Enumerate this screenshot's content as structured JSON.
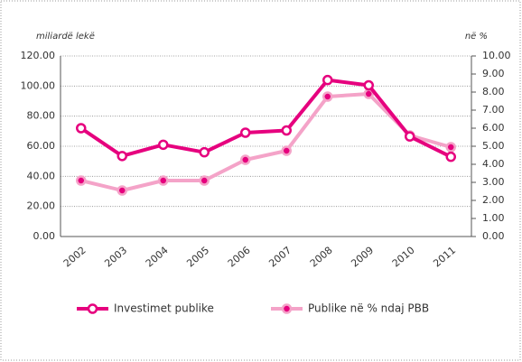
{
  "chart_data": {
    "type": "line",
    "y_label": "miliardë lekë",
    "y2_label": "në %",
    "categories": [
      "2002",
      "2003",
      "2004",
      "2005",
      "2006",
      "2007",
      "2008",
      "2009",
      "2010",
      "2011"
    ],
    "series": [
      {
        "name": "Investimet publike",
        "color": "#e6007e",
        "values": [
          72,
          53.5,
          61,
          56,
          69,
          70.5,
          104,
          100.5,
          66.5,
          53
        ]
      },
      {
        "name": "Publike në % ndaj PBB",
        "color": "#f4a3c8",
        "axis": "y2",
        "values": [
          3.1,
          2.55,
          3.1,
          3.1,
          4.25,
          4.75,
          7.75,
          7.9,
          5.6,
          4.95
        ]
      }
    ],
    "ylim": [
      0,
      120
    ],
    "yticks": [
      {
        "value": 0,
        "label": "0.00"
      },
      {
        "value": 20,
        "label": "20.00"
      },
      {
        "value": 40,
        "label": "40.00"
      },
      {
        "value": 60,
        "label": "60.00"
      },
      {
        "value": 80,
        "label": "80.00"
      },
      {
        "value": 100,
        "label": "100.00"
      },
      {
        "value": 120,
        "label": "120.00"
      }
    ],
    "y2lim": [
      0,
      10
    ],
    "y2ticks": [
      {
        "value": 0,
        "label": "0.00"
      },
      {
        "value": 1,
        "label": "1.00"
      },
      {
        "value": 2,
        "label": "2.00"
      },
      {
        "value": 3,
        "label": "3.00"
      },
      {
        "value": 4,
        "label": "4.00"
      },
      {
        "value": 5,
        "label": "5.00"
      },
      {
        "value": 6,
        "label": "6.00"
      },
      {
        "value": 7,
        "label": "7.00"
      },
      {
        "value": 8,
        "label": "8.00"
      },
      {
        "value": 9,
        "label": "9.00"
      },
      {
        "value": 10,
        "label": "10.00"
      }
    ],
    "grid": true
  }
}
